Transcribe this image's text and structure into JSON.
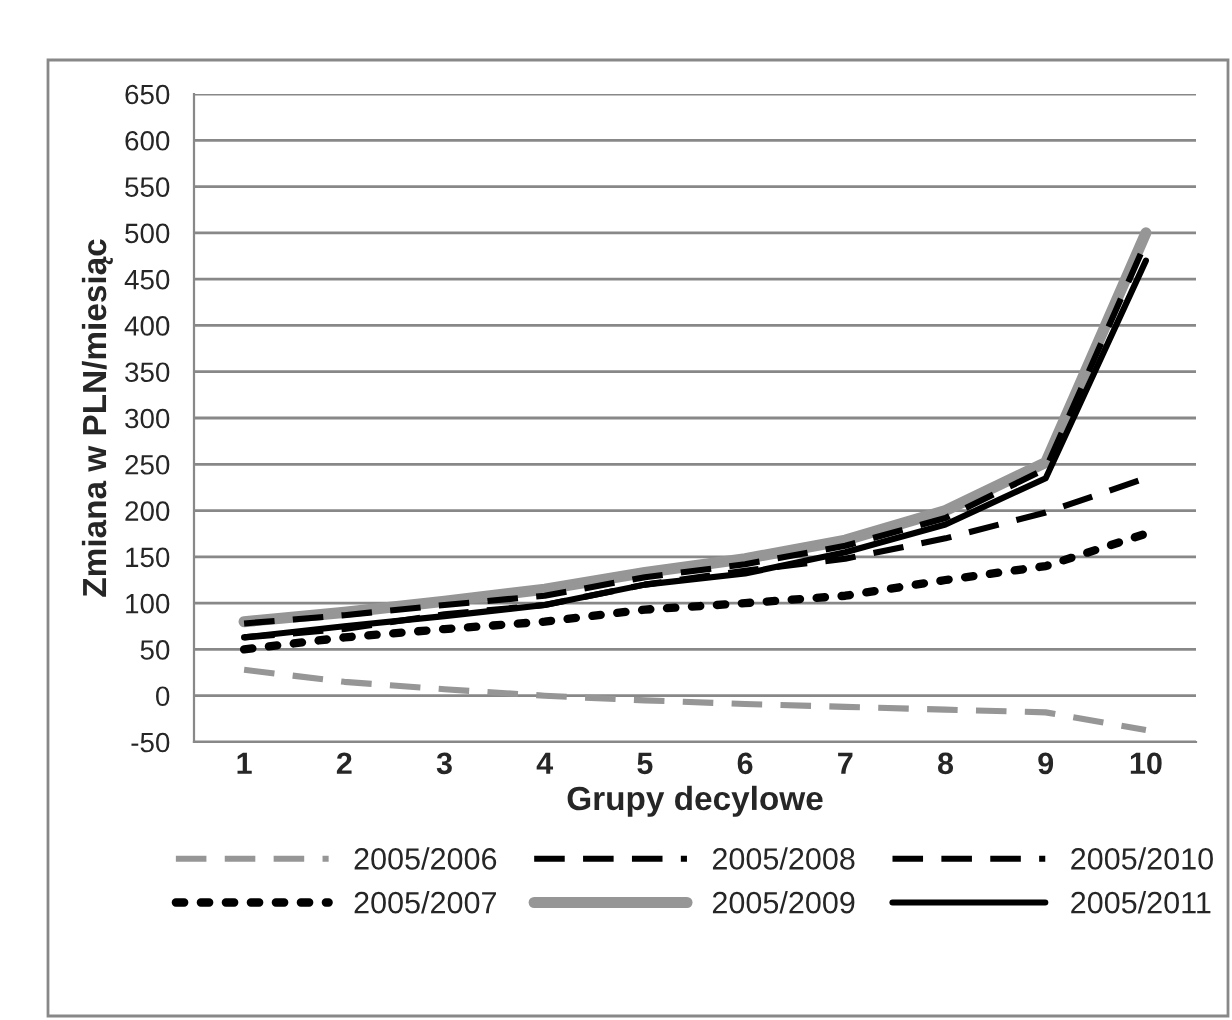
{
  "chart_data": {
    "type": "line",
    "xlabel": "Grupy decylowe",
    "ylabel": "Zmiana w PLN/miesiąc",
    "categories": [
      "1",
      "2",
      "3",
      "4",
      "5",
      "6",
      "7",
      "8",
      "9",
      "10"
    ],
    "series": [
      {
        "name": "2005/2006",
        "color": "#969696",
        "line_style": "dashed",
        "values": [
          28,
          15,
          7,
          0,
          -5,
          -9,
          -12,
          -15,
          -18,
          -37
        ]
      },
      {
        "name": "2005/2007",
        "color": "#000000",
        "line_style": "dotted",
        "values": [
          50,
          63,
          72,
          80,
          93,
          100,
          108,
          125,
          140,
          175
        ]
      },
      {
        "name": "2005/2008",
        "color": "#000000",
        "line_style": "dashed",
        "values": [
          63,
          72,
          88,
          98,
          120,
          135,
          148,
          170,
          198,
          235
        ]
      },
      {
        "name": "2005/2009",
        "color": "#969696",
        "line_style": "solid",
        "values": [
          80,
          90,
          102,
          115,
          133,
          148,
          168,
          200,
          252,
          500
        ]
      },
      {
        "name": "2005/2010",
        "color": "#000000",
        "line_style": "dashed",
        "values": [
          78,
          87,
          98,
          108,
          128,
          142,
          162,
          192,
          245,
          490
        ]
      },
      {
        "name": "2005/2011",
        "color": "#000000",
        "line_style": "solid",
        "values": [
          63,
          75,
          86,
          98,
          120,
          132,
          155,
          185,
          235,
          470
        ]
      }
    ],
    "ylim": [
      -50,
      650
    ],
    "yticks": [
      -50,
      0,
      50,
      100,
      150,
      200,
      250,
      300,
      350,
      400,
      450,
      500,
      550,
      600,
      650
    ],
    "grid": "y",
    "legend": "bottom",
    "marker": "none"
  }
}
